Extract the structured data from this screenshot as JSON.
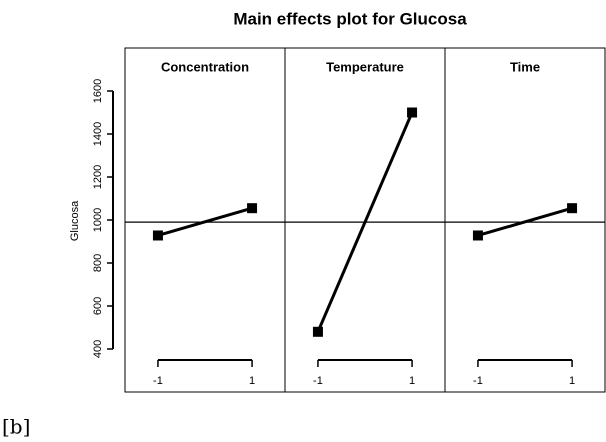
{
  "chart_data": {
    "type": "line",
    "title": "Main effects plot for Glucosa",
    "y_label": "Glucosa",
    "panels": [
      {
        "name": "Concentration",
        "x": [
          -1,
          1
        ],
        "values": [
          928,
          1055
        ]
      },
      {
        "name": "Temperature",
        "x": [
          -1,
          1
        ],
        "values": [
          480,
          1500
        ]
      },
      {
        "name": "Time",
        "x": [
          -1,
          1
        ],
        "values": [
          928,
          1055
        ]
      }
    ],
    "color": "#000000",
    "reference_line": 990,
    "xlim": [
      -1.7,
      1.7
    ],
    "xticks": [
      -1,
      1
    ],
    "ylim": [
      200,
      1800
    ],
    "yticks": [
      400,
      600,
      800,
      1000,
      1200,
      1400,
      1600
    ],
    "caption": "[b]"
  }
}
